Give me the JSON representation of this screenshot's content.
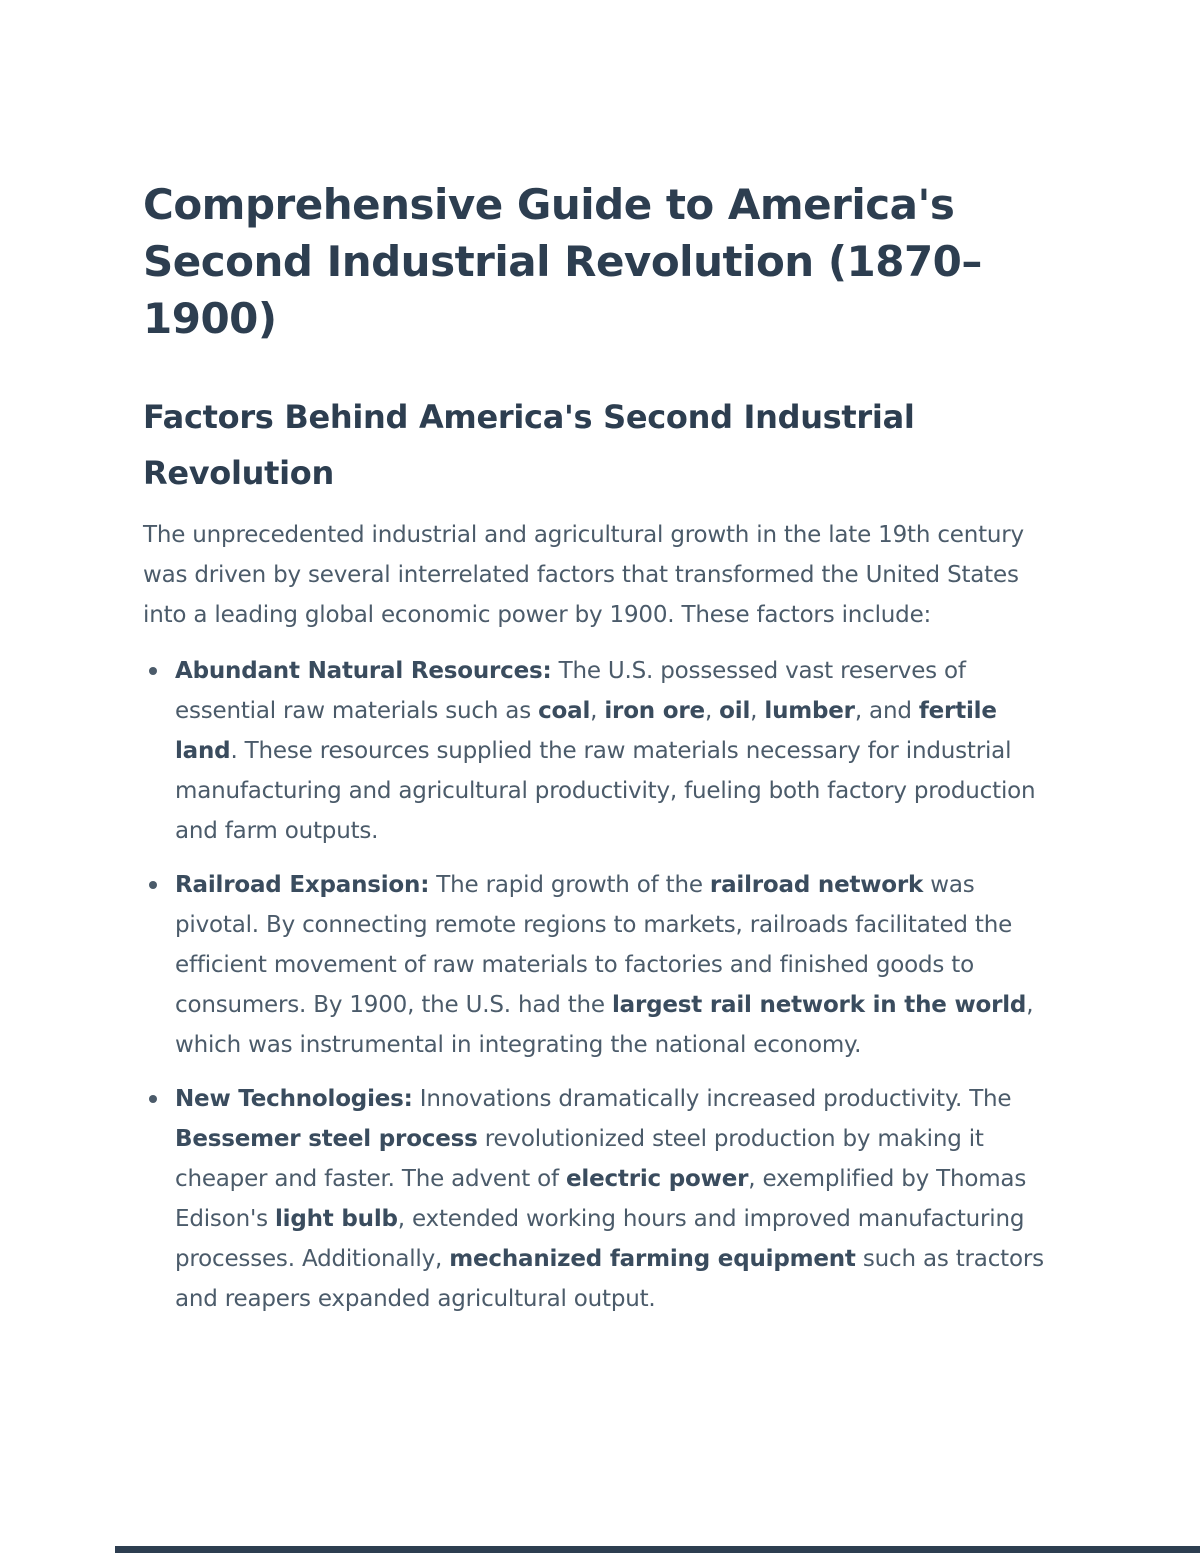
{
  "page": {
    "background": "#ffffff",
    "heading_color": "#2d3e50",
    "body_text_color": "#4b5b6a",
    "bottom_bar_color": "#2d3e50"
  },
  "document": {
    "title_lines": [
      "Comprehensive Guide to America's",
      "Second Industrial Revolution (1870–",
      "1900)"
    ],
    "section_heading_lines": [
      "Factors Behind America's Second Industrial",
      "Revolution"
    ],
    "intro": "The unprecedented industrial and agricultural growth in the late 19th century was driven by several interrelated factors that transformed the United States into a leading global economic power by 1900. These factors include:",
    "bullets": [
      {
        "segments": [
          {
            "text": "Abundant Natural Resources:",
            "bold": true
          },
          {
            "text": " The U.S. possessed vast reserves of essential raw materials such as ",
            "bold": false
          },
          {
            "text": "coal",
            "bold": true
          },
          {
            "text": ", ",
            "bold": false
          },
          {
            "text": "iron ore",
            "bold": true
          },
          {
            "text": ", ",
            "bold": false
          },
          {
            "text": "oil",
            "bold": true
          },
          {
            "text": ", ",
            "bold": false
          },
          {
            "text": "lumber",
            "bold": true
          },
          {
            "text": ", and ",
            "bold": false
          },
          {
            "text": "fertile land",
            "bold": true
          },
          {
            "text": ". These resources supplied the raw materials necessary for industrial manufacturing and agricultural productivity, fueling both factory production and farm outputs.",
            "bold": false
          }
        ]
      },
      {
        "segments": [
          {
            "text": "Railroad Expansion:",
            "bold": true
          },
          {
            "text": " The rapid growth of the ",
            "bold": false
          },
          {
            "text": "railroad network",
            "bold": true
          },
          {
            "text": " was pivotal. By connecting remote regions to markets, railroads facilitated the efficient movement of raw materials to factories and finished goods to consumers. By 1900, the U.S. had the ",
            "bold": false
          },
          {
            "text": "largest rail network in the world",
            "bold": true
          },
          {
            "text": ", which was instrumental in integrating the national economy.",
            "bold": false
          }
        ]
      },
      {
        "segments": [
          {
            "text": "New Technologies:",
            "bold": true
          },
          {
            "text": " Innovations dramatically increased productivity. The ",
            "bold": false
          },
          {
            "text": "Bessemer steel process",
            "bold": true
          },
          {
            "text": " revolutionized steel production by making it cheaper and faster. The advent of ",
            "bold": false
          },
          {
            "text": "electric power",
            "bold": true
          },
          {
            "text": ", exemplified by Thomas Edison's ",
            "bold": false
          },
          {
            "text": "light bulb",
            "bold": true
          },
          {
            "text": ", extended working hours and improved manufacturing processes. Additionally, ",
            "bold": false
          },
          {
            "text": "mechanized farming equipment",
            "bold": true
          },
          {
            "text": " such as tractors and reapers expanded agricultural output.",
            "bold": false
          }
        ]
      }
    ]
  }
}
